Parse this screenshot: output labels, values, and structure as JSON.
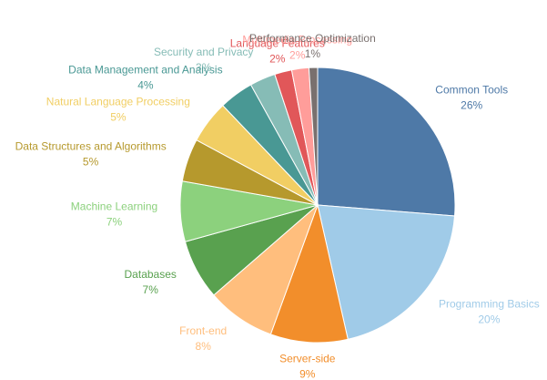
{
  "chart_data": {
    "type": "pie",
    "title": "",
    "start_angle_deg": 0,
    "direction": "clockwise",
    "slices": [
      {
        "label": "Common Tools",
        "percent_label": "26%",
        "value": 26,
        "color": "#4e79a7"
      },
      {
        "label": "Programming Basics",
        "percent_label": "20%",
        "value": 20,
        "color": "#a0cbe8"
      },
      {
        "label": "Server-side",
        "percent_label": "9%",
        "value": 9,
        "color": "#f28e2b"
      },
      {
        "label": "Front-end",
        "percent_label": "8%",
        "value": 8,
        "color": "#ffbe7d"
      },
      {
        "label": "Databases",
        "percent_label": "7%",
        "value": 7,
        "color": "#59a14f"
      },
      {
        "label": "Machine Learning",
        "percent_label": "7%",
        "value": 7,
        "color": "#8cd17d"
      },
      {
        "label": "Data Structures and Algorithms",
        "percent_label": "5%",
        "value": 5,
        "color": "#b6992d"
      },
      {
        "label": "Natural Language Processing",
        "percent_label": "5%",
        "value": 5,
        "color": "#f1ce63"
      },
      {
        "label": "Data Management and Analysis",
        "percent_label": "4%",
        "value": 4,
        "color": "#499894"
      },
      {
        "label": "Security and Privacy",
        "percent_label": "3%",
        "value": 3,
        "color": "#86bcb6"
      },
      {
        "label": "Language Features",
        "percent_label": "2%",
        "value": 2,
        "color": "#e15759"
      },
      {
        "label": "Multimedia Processing",
        "percent_label": "2%",
        "value": 2,
        "color": "#ff9d9a"
      },
      {
        "label": "Performance Optimization",
        "percent_label": "1%",
        "value": 1,
        "color": "#79706e"
      }
    ]
  }
}
